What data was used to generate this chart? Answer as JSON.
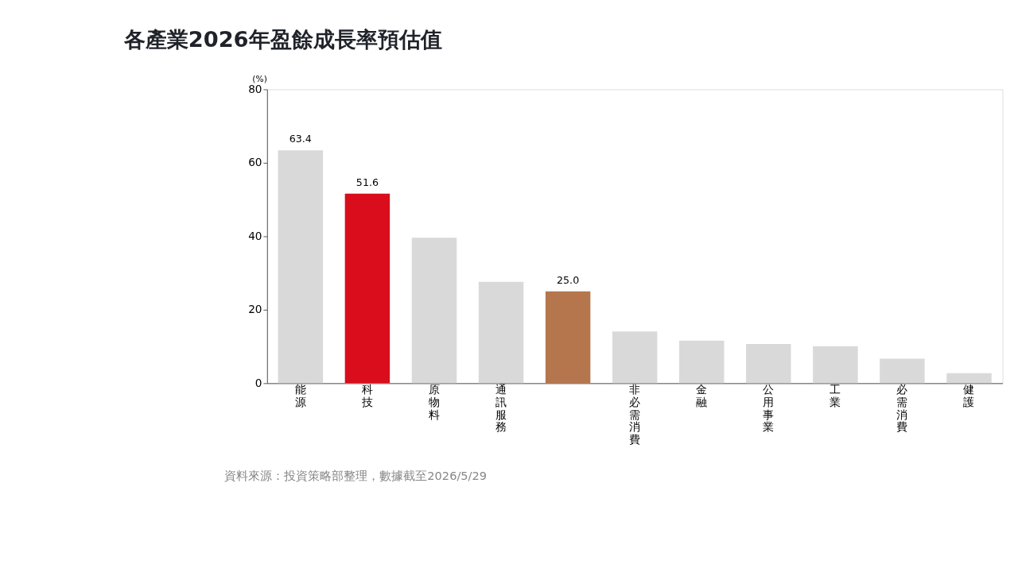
{
  "chart_data": {
    "type": "bar",
    "title": "各產業2026年盈餘成長率預估值",
    "ylabel": "(%)",
    "categories": [
      "能源",
      "科技",
      "原物料",
      "通訊服務",
      null,
      "非必需消費",
      "金融",
      "公用事業",
      "工業",
      "必需消費",
      "健護"
    ],
    "values": [
      63.4,
      51.6,
      39.6,
      27.6,
      25.0,
      14.1,
      11.6,
      10.7,
      10.1,
      6.7,
      2.7
    ],
    "colors": [
      "#d9d9d9",
      "#d90d1b",
      "#d9d9d9",
      "#d9d9d9",
      "#b5764e",
      "#d9d9d9",
      "#d9d9d9",
      "#d9d9d9",
      "#d9d9d9",
      "#d9d9d9",
      "#d9d9d9"
    ],
    "value_labels": [
      "63.4",
      "51.6",
      null,
      null,
      "25.0",
      null,
      null,
      null,
      null,
      null,
      null
    ],
    "ylim": [
      0,
      80
    ],
    "yticks": [
      0,
      20,
      40,
      60,
      80
    ],
    "grid": false,
    "annotations": [
      "資料來源：投資策略部整理，數據截至2026/5/29"
    ]
  }
}
